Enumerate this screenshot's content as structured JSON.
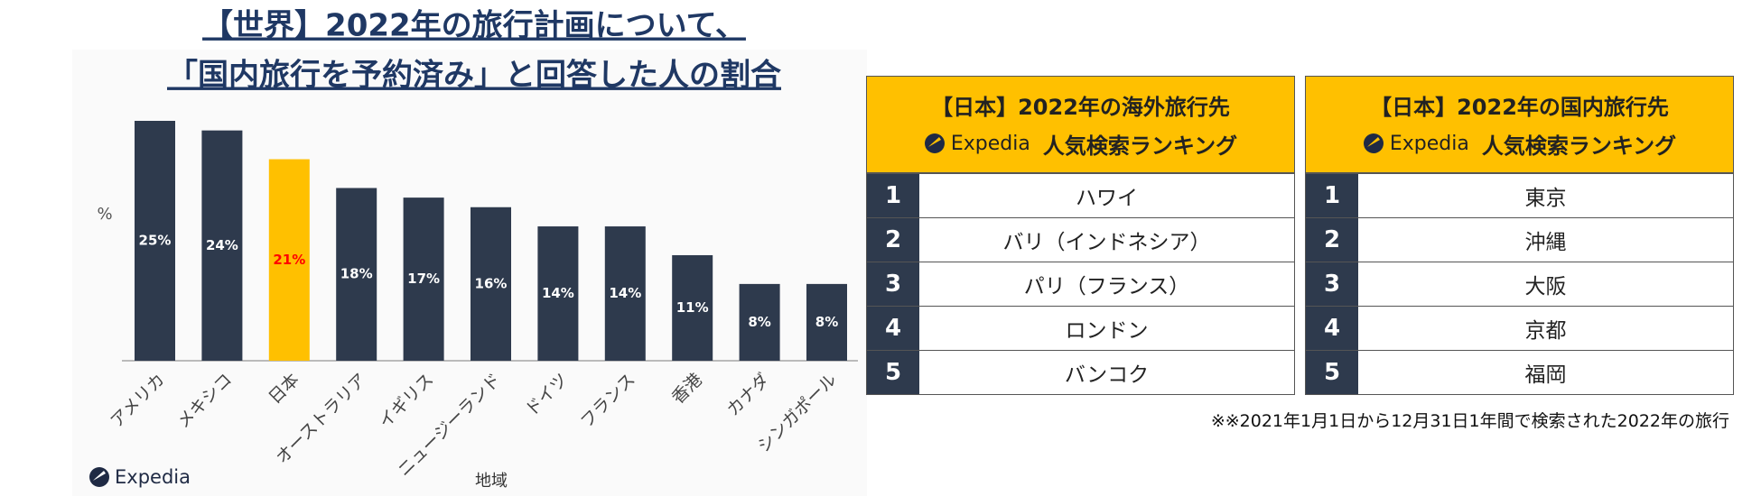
{
  "chart_data": {
    "type": "bar",
    "title": [
      "【世界】2022年の旅行計画について、",
      "「国内旅行を予約済み」と回答した人の割合"
    ],
    "ylabel": "%",
    "xlabel": "地域",
    "categories": [
      "アメリカ",
      "メキシコ",
      "日本",
      "オーストラリア",
      "イギリス",
      "ニュージーランド",
      "ドイツ",
      "フランス",
      "香港",
      "カナダ",
      "シンガポール"
    ],
    "values": [
      25,
      24,
      21,
      18,
      17,
      16,
      14,
      14,
      11,
      8,
      8
    ],
    "value_labels": [
      "25%",
      "24%",
      "21%",
      "18%",
      "17%",
      "16%",
      "14%",
      "14%",
      "11%",
      "8%",
      "8%"
    ],
    "colors": [
      "#2e3a4d",
      "#2e3a4d",
      "#ffc000",
      "#2e3a4d",
      "#2e3a4d",
      "#2e3a4d",
      "#2e3a4d",
      "#2e3a4d",
      "#2e3a4d",
      "#2e3a4d",
      "#2e3a4d"
    ],
    "label_colors": [
      "#ffffff",
      "#ffffff",
      "#ff0000",
      "#ffffff",
      "#ffffff",
      "#ffffff",
      "#ffffff",
      "#ffffff",
      "#ffffff",
      "#ffffff",
      "#ffffff"
    ],
    "ylim": [
      0,
      25
    ]
  },
  "logo": "Expedia",
  "tables": [
    {
      "title": "【日本】2022年の海外旅行先",
      "subtitle": "人気検索ランキング",
      "rows": [
        [
          1,
          "ハワイ"
        ],
        [
          2,
          "バリ（インドネシア）"
        ],
        [
          3,
          "パリ（フランス）"
        ],
        [
          4,
          "ロンドン"
        ],
        [
          5,
          "バンコク"
        ]
      ]
    },
    {
      "title": "【日本】2022年の国内旅行先",
      "subtitle": "人気検索ランキング",
      "rows": [
        [
          1,
          "東京"
        ],
        [
          2,
          "沖縄"
        ],
        [
          3,
          "大阪"
        ],
        [
          4,
          "京都"
        ],
        [
          5,
          "福岡"
        ]
      ]
    }
  ],
  "footnote": "※※2021年1月1日から12月31日1年間で検索された2022年の旅行"
}
